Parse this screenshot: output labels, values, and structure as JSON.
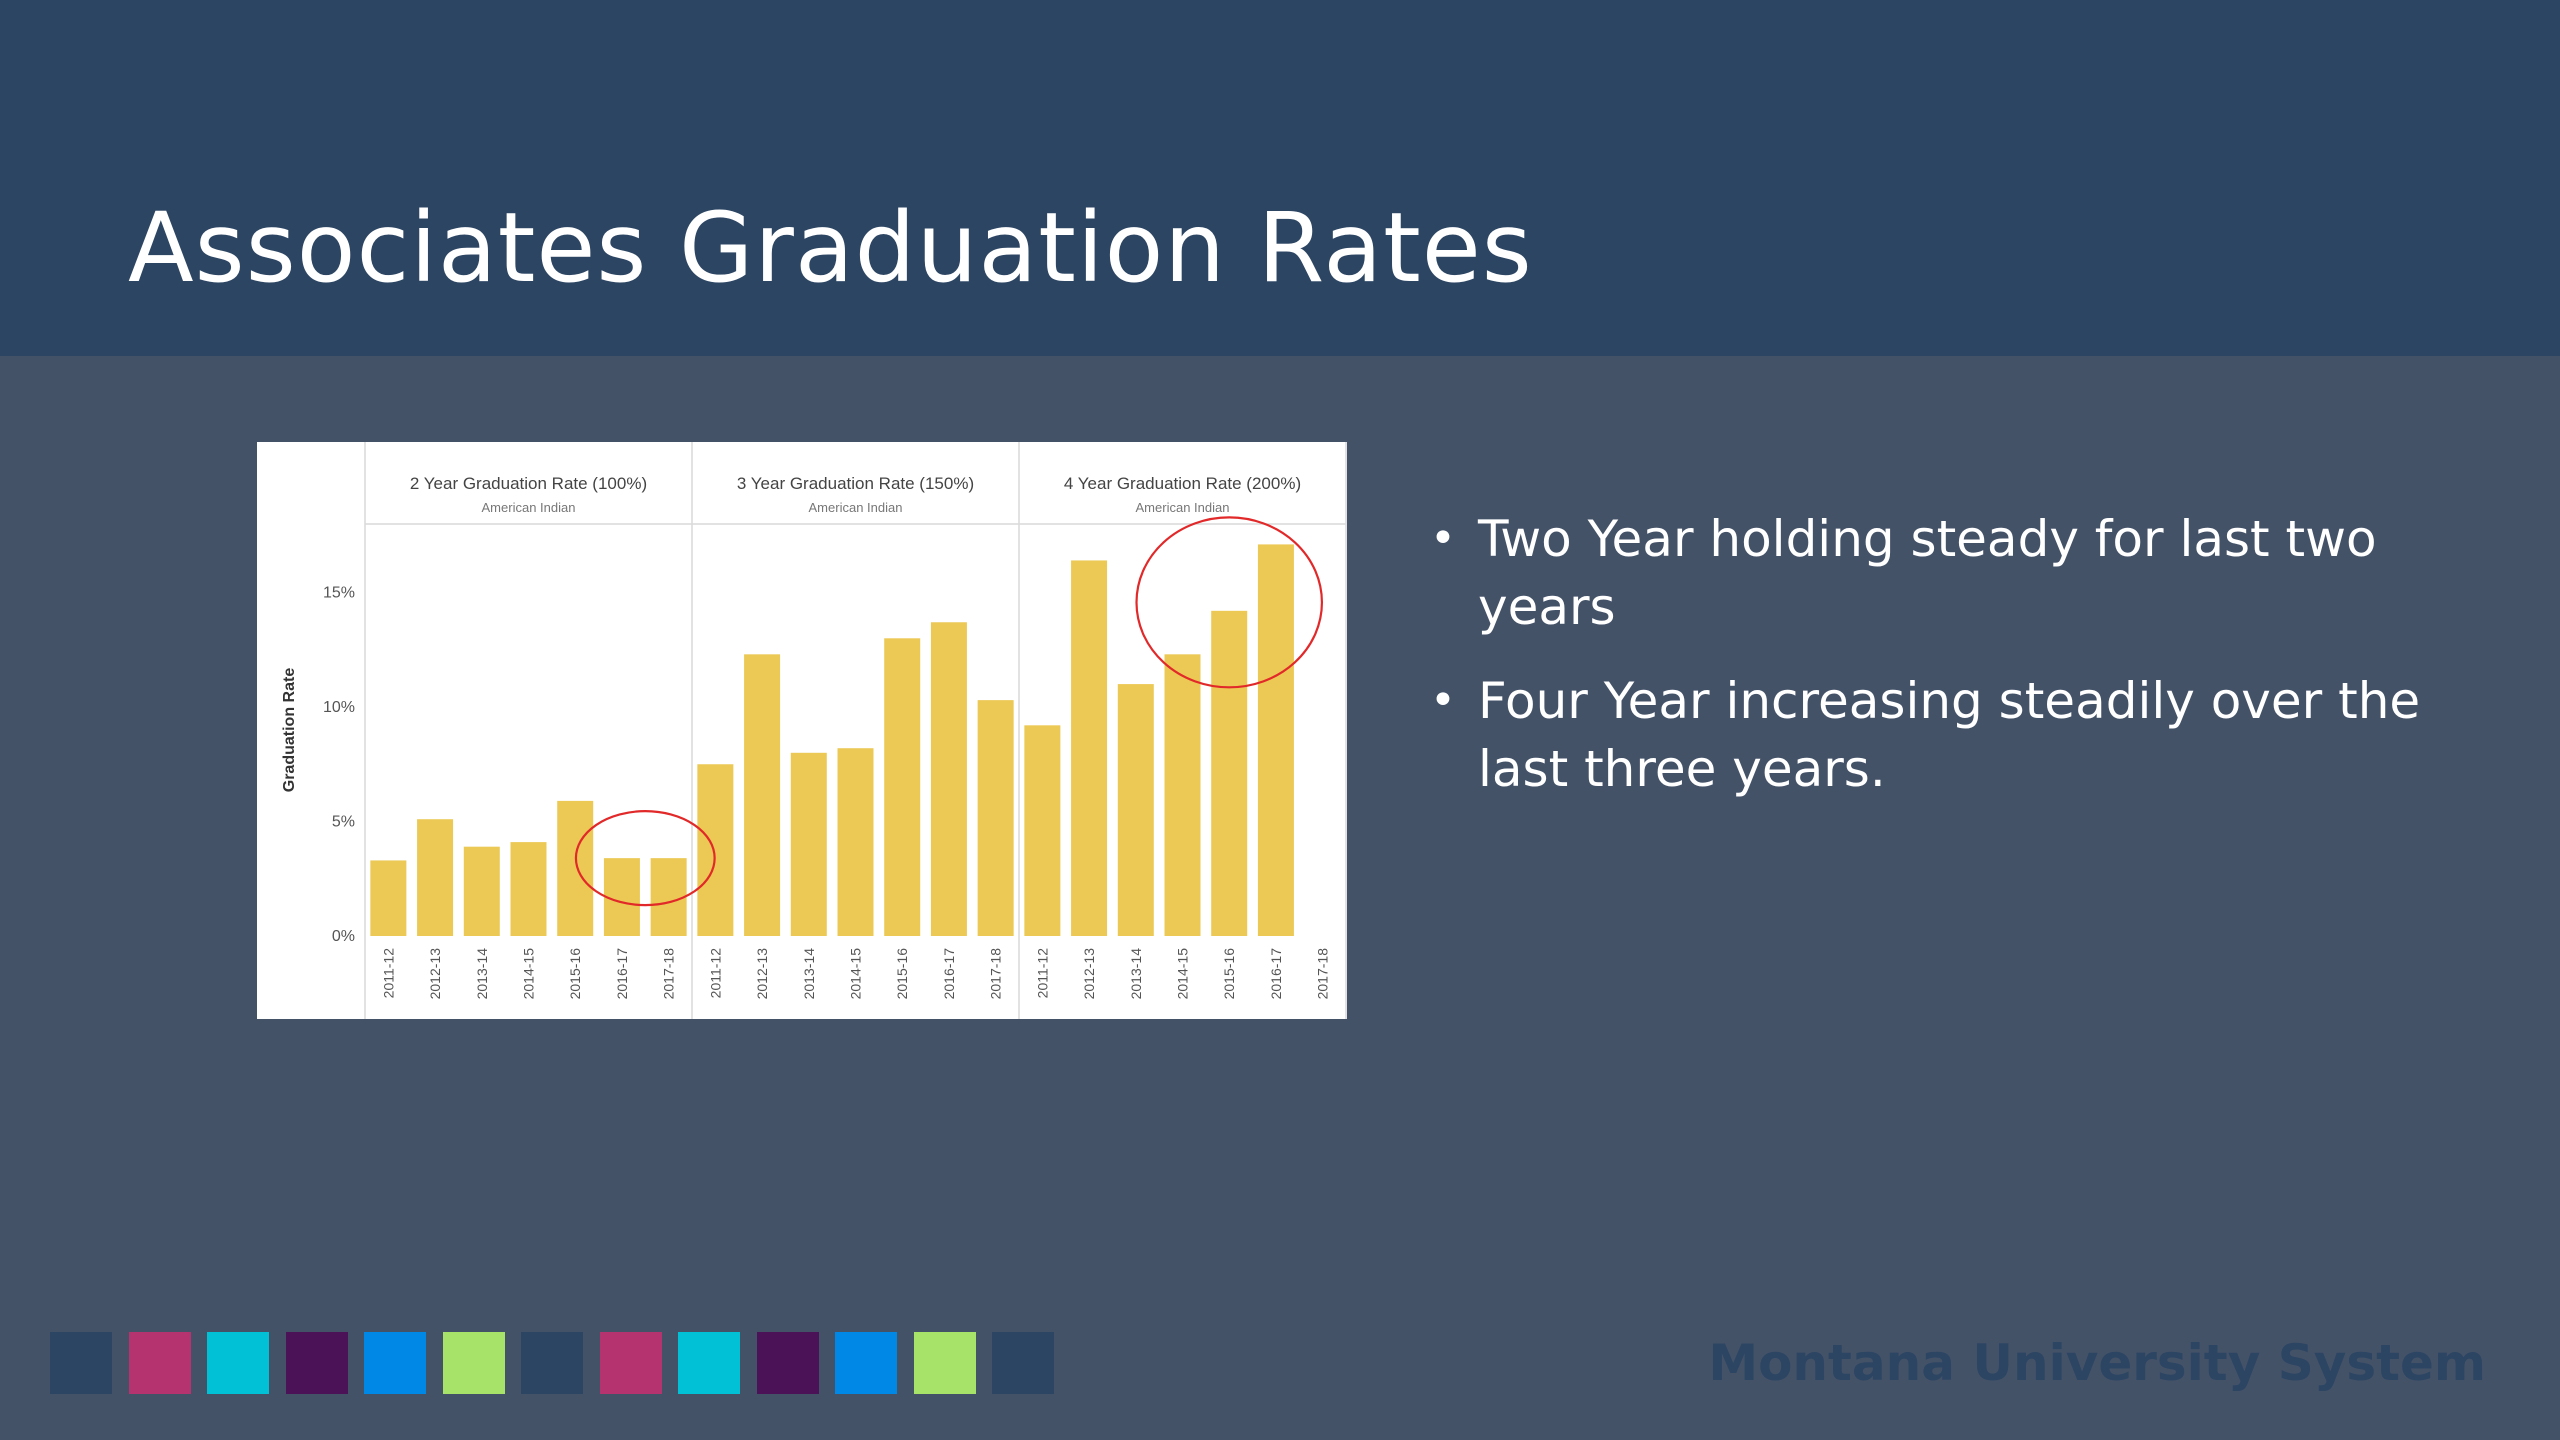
{
  "slide": {
    "title": "Associates Graduation Rates",
    "bullets": [
      "Two Year holding steady for last two years",
      "Four Year increasing steadily over the last three years."
    ],
    "brand": "Montana University System"
  },
  "theme": {
    "header_bg": "#2c4563",
    "body_bg": "#445268",
    "bar_color": "#ecc854",
    "highlight_circle": "#e1292a"
  },
  "footer_swatches": [
    "#2c4563",
    "#b5336f",
    "#00c1d5",
    "#4b1257",
    "#0088e6",
    "#a7e269",
    "#2c4563",
    "#b5336f",
    "#00c1d5",
    "#4b1257",
    "#0088e6",
    "#a7e269",
    "#2c4563"
  ],
  "chart_data": {
    "type": "bar",
    "ylabel": "Graduation Rate",
    "yticks": [
      "0%",
      "5%",
      "10%",
      "15%"
    ],
    "ylim": [
      0,
      18
    ],
    "categories": [
      "2011-12",
      "2012-13",
      "2013-14",
      "2014-15",
      "2015-16",
      "2016-17",
      "2017-18"
    ],
    "panels": [
      {
        "title": "2 Year Graduation Rate (100%)",
        "subtitle": "American Indian",
        "values": [
          3.3,
          5.1,
          3.9,
          4.1,
          5.9,
          3.4,
          3.4
        ]
      },
      {
        "title": "3 Year Graduation Rate (150%)",
        "subtitle": "American Indian",
        "values": [
          7.5,
          12.3,
          8.0,
          8.2,
          13.0,
          13.7,
          10.3
        ]
      },
      {
        "title": "4 Year Graduation Rate (200%)",
        "subtitle": "American Indian",
        "values": [
          9.2,
          16.4,
          11.0,
          12.3,
          14.2,
          17.1,
          null
        ]
      }
    ],
    "highlights": [
      {
        "panel": 0,
        "from": 5,
        "to": 6
      },
      {
        "panel": 2,
        "from": 3,
        "to": 5
      }
    ],
    "grid": false,
    "legend": "none"
  }
}
